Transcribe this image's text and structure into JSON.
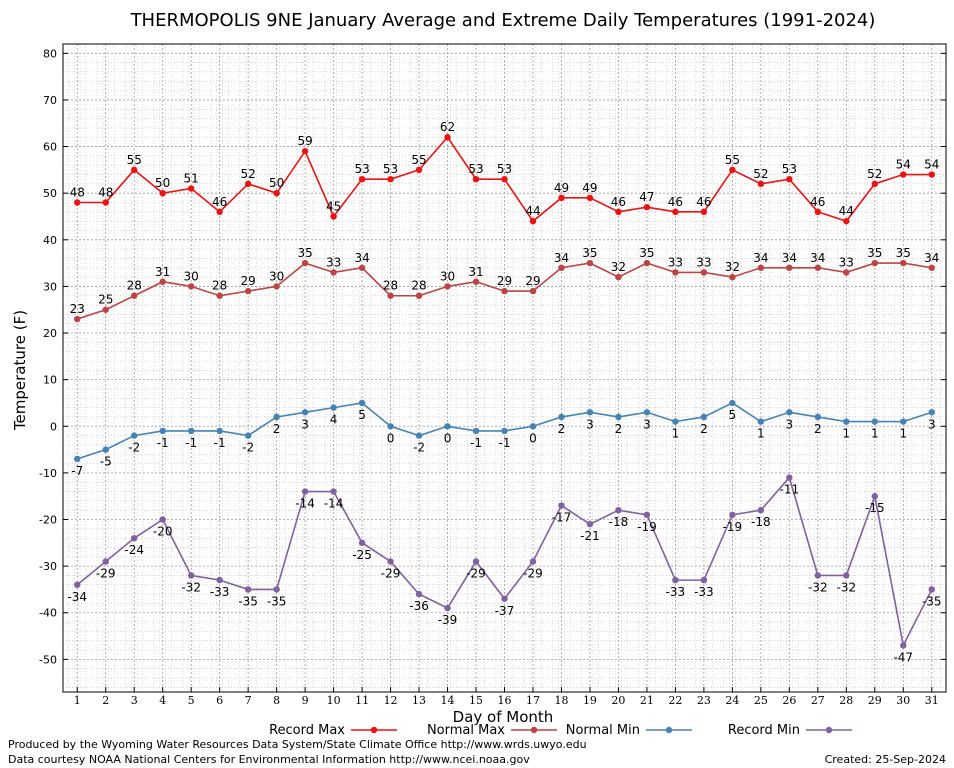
{
  "chart_data": {
    "type": "line",
    "title": "THERMOPOLIS 9NE January Average and Extreme Daily Temperatures (1991-2024)",
    "xlabel": "Day of Month",
    "ylabel": "Temperature (F)",
    "x": [
      1,
      2,
      3,
      4,
      5,
      6,
      7,
      8,
      9,
      10,
      11,
      12,
      13,
      14,
      15,
      16,
      17,
      18,
      19,
      20,
      21,
      22,
      23,
      24,
      25,
      26,
      27,
      28,
      29,
      30,
      31
    ],
    "xlim": [
      0.5,
      31.5
    ],
    "ylim": [
      -57,
      82
    ],
    "yticks": [
      -50,
      -40,
      -30,
      -20,
      -10,
      0,
      10,
      20,
      30,
      40,
      50,
      60,
      70,
      80
    ],
    "grid": true,
    "legend_position": "bottom",
    "series": [
      {
        "name": "Record Max",
        "color": "#ee1111",
        "values": [
          48,
          48,
          55,
          50,
          51,
          46,
          52,
          50,
          59,
          45,
          53,
          53,
          55,
          62,
          53,
          53,
          44,
          49,
          49,
          46,
          47,
          46,
          46,
          55,
          52,
          53,
          46,
          44,
          52,
          54,
          54
        ]
      },
      {
        "name": "Normal Max",
        "color": "#bb4444",
        "values": [
          23,
          25,
          28,
          31,
          30,
          28,
          29,
          30,
          35,
          33,
          34,
          28,
          28,
          30,
          31,
          29,
          29,
          34,
          35,
          32,
          35,
          33,
          33,
          32,
          34,
          34,
          34,
          33,
          35,
          35,
          34
        ]
      },
      {
        "name": "Normal Min",
        "color": "#4682b4",
        "values": [
          -7,
          -5,
          -2,
          -1,
          -1,
          -1,
          -2,
          2,
          3,
          4,
          5,
          0,
          -2,
          0,
          -1,
          -1,
          0,
          2,
          3,
          2,
          3,
          1,
          2,
          5,
          1,
          3,
          2,
          1,
          1,
          1,
          3
        ]
      },
      {
        "name": "Record Min",
        "color": "#8060a0",
        "values": [
          -34,
          -29,
          -24,
          -20,
          -32,
          -33,
          -35,
          -35,
          -14,
          -14,
          -25,
          -29,
          -36,
          -39,
          -29,
          -37,
          -29,
          -17,
          -21,
          -18,
          -19,
          -33,
          -33,
          -19,
          -18,
          -11,
          -32,
          -32,
          -15,
          -47,
          -35
        ]
      }
    ]
  },
  "footer": {
    "line1": "Produced by the Wyoming Water Resources Data System/State Climate Office http://www.wrds.uwyo.edu",
    "line2": "Data courtesy NOAA National Centers for Environmental Information http://www.ncei.noaa.gov",
    "created": "Created:  25-Sep-2024"
  }
}
